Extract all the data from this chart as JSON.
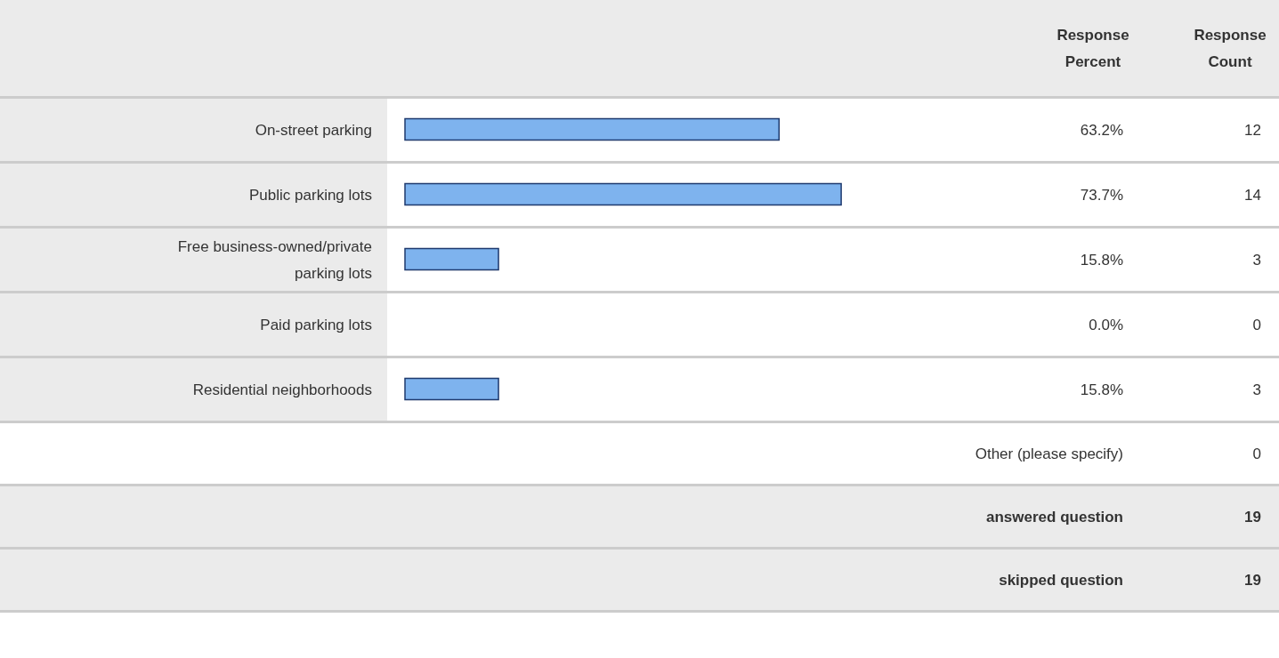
{
  "chart_data": {
    "type": "bar",
    "orientation": "horizontal",
    "categories": [
      "On-street parking",
      "Public parking lots",
      "Free business-owned/private parking lots",
      "Paid parking lots",
      "Residential neighborhoods"
    ],
    "values": [
      63.2,
      73.7,
      15.8,
      0.0,
      15.8
    ],
    "value_labels": [
      "63.2%",
      "73.7%",
      "15.8%",
      "0.0%",
      "15.8%"
    ],
    "color": "#7eb3ee",
    "annotations": [
      "Response Percent",
      "Response Count",
      "12",
      "14",
      "3",
      "0",
      "3",
      "Other (please specify)",
      "0",
      "answered question",
      "19",
      "skipped question",
      "19"
    ]
  }
}
